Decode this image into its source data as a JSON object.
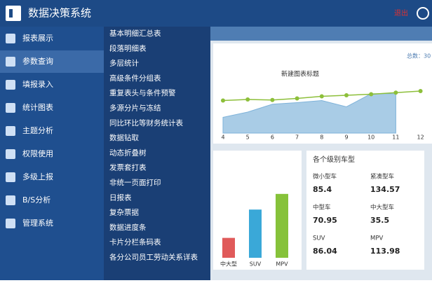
{
  "header": {
    "title": "数据决策系统",
    "logout": "退出"
  },
  "sidebar": {
    "items": [
      "报表展示",
      "参数查询",
      "填报录入",
      "统计图表",
      "主题分析",
      "权限使用",
      "多级上报",
      "B/S分析",
      "管理系统"
    ],
    "active": 1
  },
  "submenu": {
    "items": [
      "基本明细汇总表",
      "段落明细表",
      "多层统计",
      "高级条件分组表",
      "重复表头与条件预警",
      "多源分片与冻结",
      "同比环比等财务统计表",
      "数据钻取",
      "动态折叠树",
      "发票套打表",
      "非统一页面打印",
      "日报表",
      "复杂票据",
      "数据进度条",
      "卡片分栏条码表",
      "各分公司员工劳动关系详表"
    ]
  },
  "line_chart": {
    "type": "line",
    "title": "新建图表标题",
    "total": "总数：30",
    "x": [
      4,
      5,
      6,
      7,
      8,
      9,
      10,
      11,
      12
    ],
    "series": [
      {
        "name": "line",
        "color": "#8dbf3a",
        "values": [
          62,
          64,
          63,
          66,
          70,
          72,
          74,
          77,
          80
        ]
      },
      {
        "name": "area",
        "color": "#a9cce6",
        "values": [
          30,
          40,
          55,
          58,
          62,
          50,
          75,
          75,
          null
        ]
      }
    ]
  },
  "bar_chart": {
    "type": "bar",
    "categories": [
      "中大型",
      "SUV",
      "MPV"
    ],
    "colors": [
      "#e05a5a",
      "#3aa8d8",
      "#86c23a"
    ]
  },
  "cards": {
    "title": "各个级别车型",
    "items": [
      {
        "label": "微小型车",
        "value": 85.4
      },
      {
        "label": "紧凑型车",
        "value": 134.57
      },
      {
        "label": "中型车",
        "value": 70.95
      },
      {
        "label": "中大型车",
        "value": 35.5
      },
      {
        "label": "SUV",
        "value": 86.04
      },
      {
        "label": "MPV",
        "value": 113.98
      }
    ]
  }
}
